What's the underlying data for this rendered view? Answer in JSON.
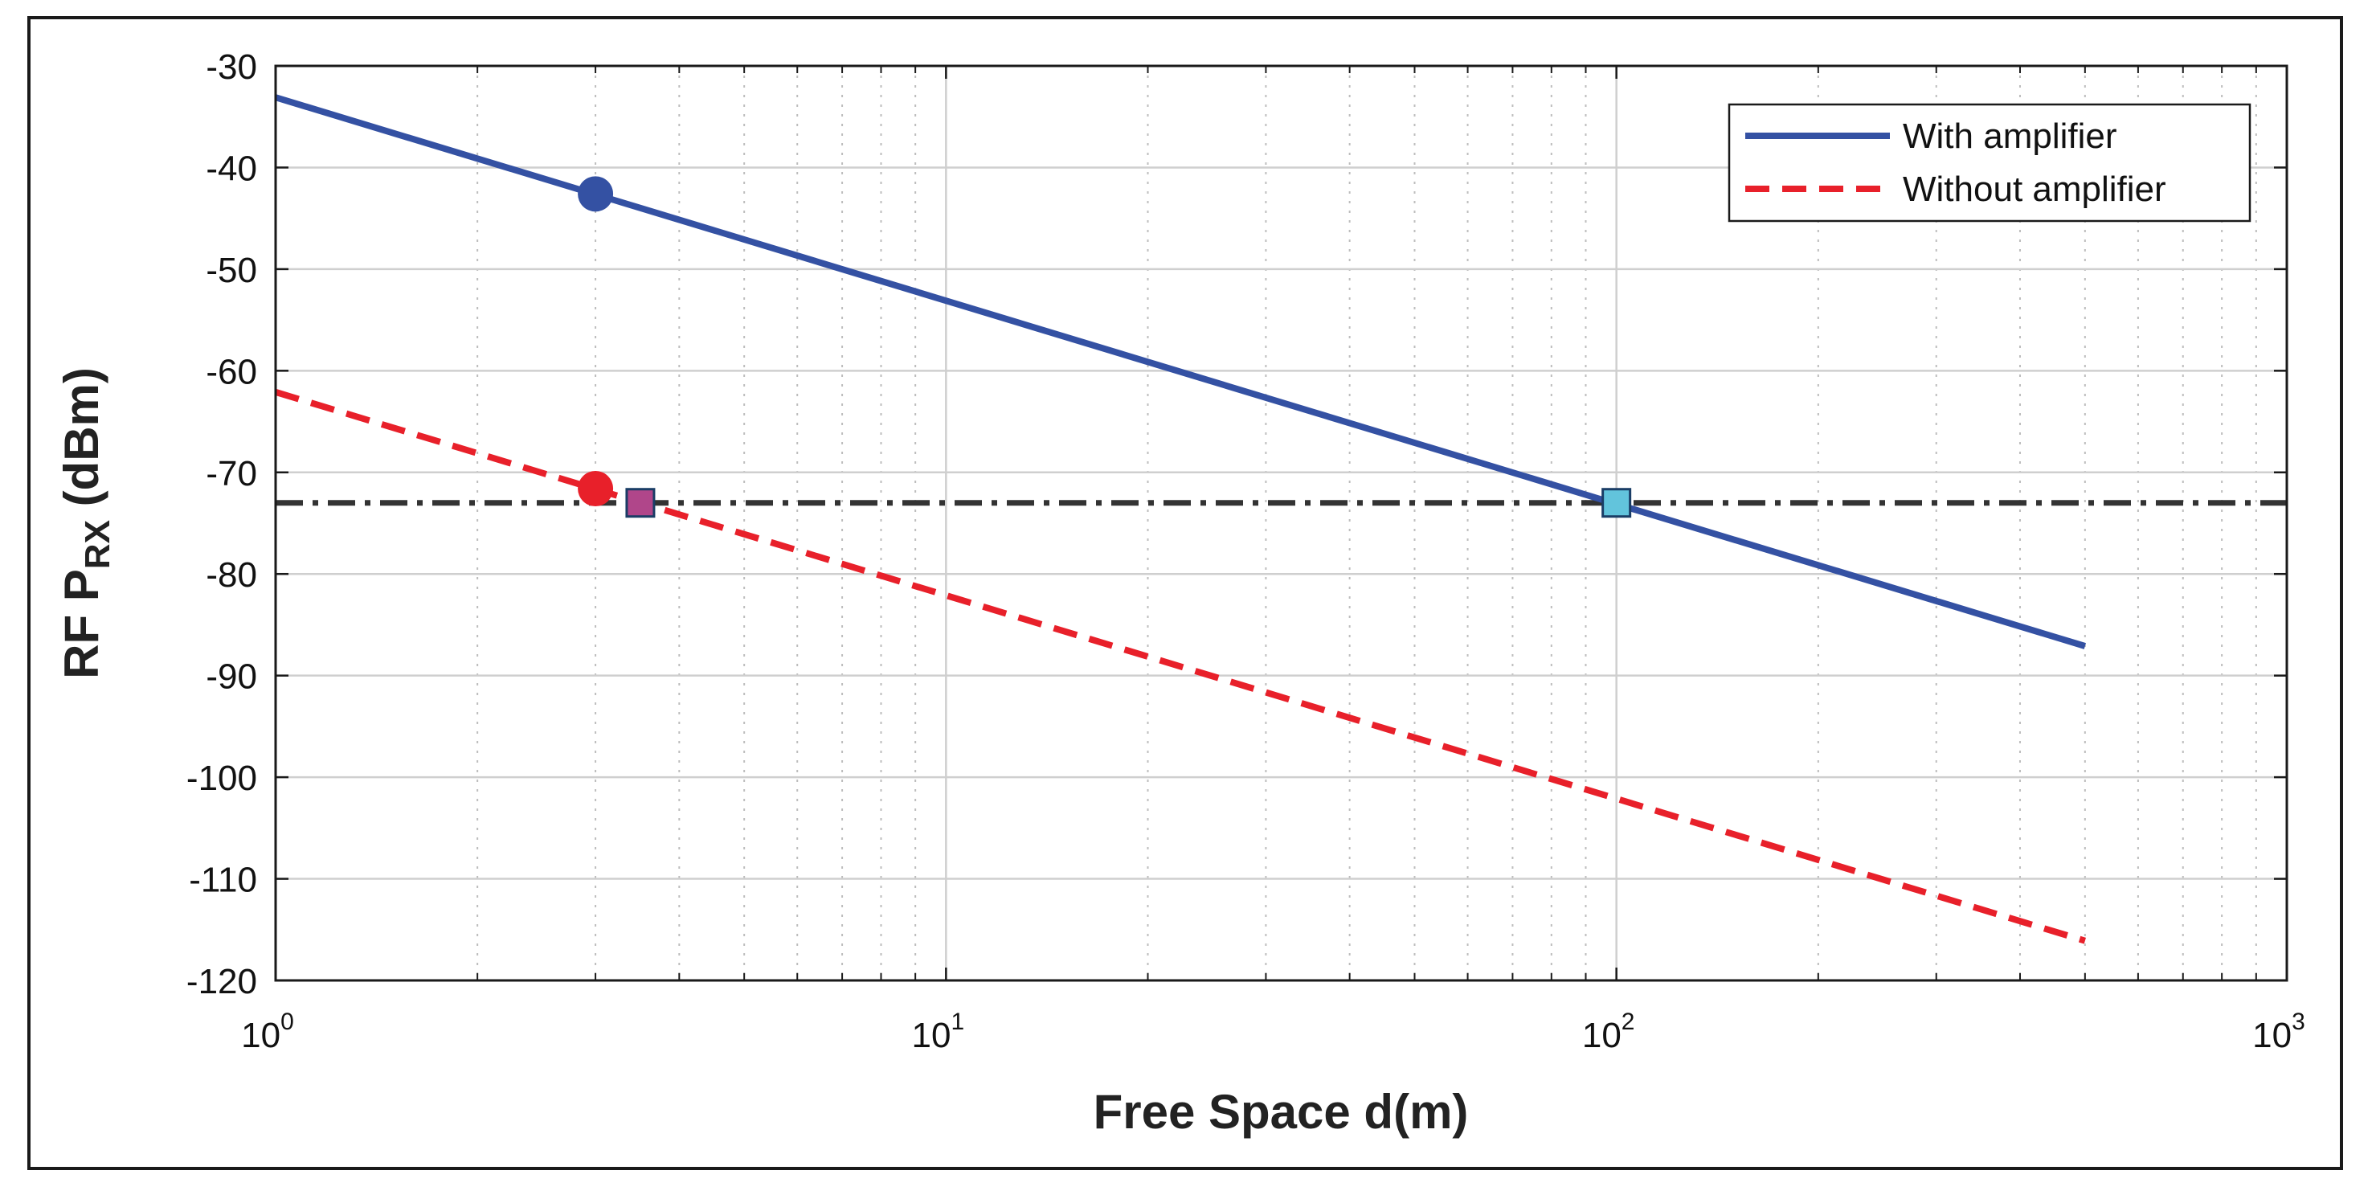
{
  "chart_data": {
    "type": "line",
    "xlabel": "Free Space d(m)",
    "ylabel": {
      "main": "RF P",
      "sub": "RX",
      "suffix": " (dBm)"
    },
    "x_scale": "log",
    "xlim": [
      1,
      1000
    ],
    "ylim": [
      -120,
      -30
    ],
    "grid": true,
    "x_ticks": [
      {
        "base": "10",
        "exp": "0"
      },
      {
        "base": "10",
        "exp": "1"
      },
      {
        "base": "10",
        "exp": "2"
      },
      {
        "base": "10",
        "exp": "3"
      }
    ],
    "y_ticks": [
      "-30",
      "-40",
      "-50",
      "-60",
      "-70",
      "-80",
      "-90",
      "-100",
      "-110",
      "-120"
    ],
    "legend_position": "top-right",
    "series": [
      {
        "name": "With amplifier",
        "color": "#3451a3",
        "style": "solid",
        "x": [
          1,
          500
        ],
        "y": [
          -33.1,
          -87.1
        ]
      },
      {
        "name": "Without amplifier",
        "color": "#e8202a",
        "style": "dashed",
        "x": [
          1,
          500
        ],
        "y": [
          -62.1,
          -116.1
        ]
      }
    ],
    "threshold": {
      "y": -73,
      "color": "#333333",
      "style": "dash-dot"
    },
    "markers": [
      {
        "shape": "circle",
        "x": 3,
        "y": -42.6,
        "color": "#3451a3"
      },
      {
        "shape": "circle",
        "x": 3,
        "y": -71.6,
        "color": "#e8202a"
      },
      {
        "shape": "square",
        "x": 3.5,
        "y": -73,
        "color": "#b0468a"
      },
      {
        "shape": "square",
        "x": 100,
        "y": -73,
        "color": "#62c4dc"
      }
    ]
  }
}
